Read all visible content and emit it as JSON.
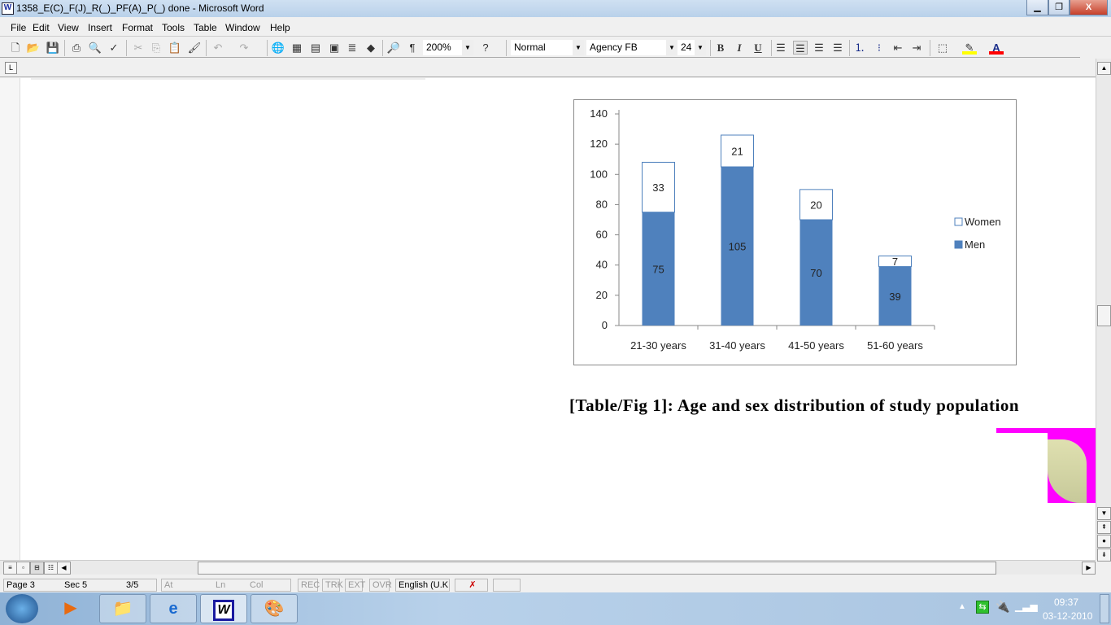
{
  "window": {
    "title": "1358_E(C)_F(J)_R(_)_PF(A)_P(_) done - Microsoft Word",
    "icon": "word-doc-icon"
  },
  "menu": [
    "File",
    "Edit",
    "View",
    "Insert",
    "Format",
    "Tools",
    "Table",
    "Window",
    "Help"
  ],
  "toolbar": {
    "zoom": "200%",
    "style": "Normal",
    "font": "Agency FB",
    "size": "24",
    "bold": "B",
    "italic": "I",
    "underline": "U",
    "pilcrow": "¶"
  },
  "chart_data": {
    "type": "bar",
    "stacked": true,
    "categories": [
      "21-30 years",
      "31-40 years",
      "41-50 years",
      "51-60 years"
    ],
    "series": [
      {
        "name": "Men",
        "values": [
          75,
          105,
          70,
          39
        ],
        "color": "#4f81bd"
      },
      {
        "name": "Women",
        "values": [
          33,
          21,
          20,
          7
        ],
        "color": "#ffffff"
      }
    ],
    "ylim": [
      0,
      140
    ],
    "yticks": [
      0,
      20,
      40,
      60,
      80,
      100,
      120,
      140
    ],
    "legend": "right",
    "grid": false
  },
  "caption": "[Table/Fig 1]: Age and sex distribution of study population",
  "status": {
    "page": "Page  3",
    "sec": "Sec  5",
    "pages": "3/5",
    "at": "At",
    "ln": "Ln",
    "col": "Col",
    "rec": "REC",
    "trk": "TRK",
    "ext": "EXT",
    "ovr": "OVR",
    "lang": "English (U.K"
  },
  "tray": {
    "time": "09:37",
    "date": "03-12-2010"
  }
}
